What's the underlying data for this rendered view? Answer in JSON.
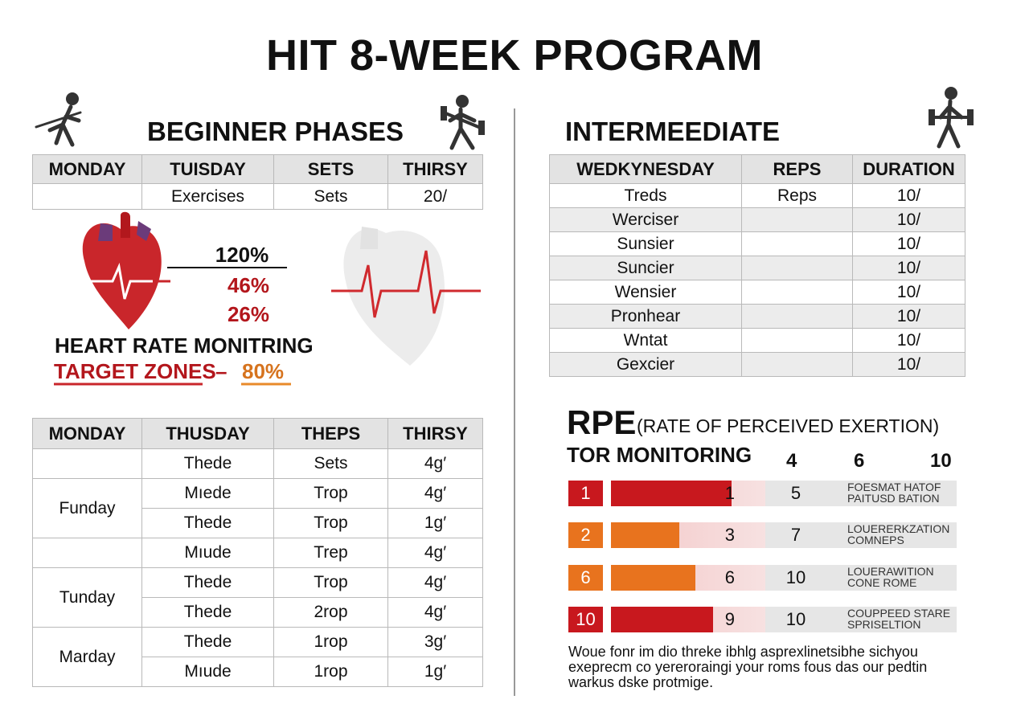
{
  "title": "HIT 8-WEEK PROGRAM",
  "beginner": {
    "heading": "BEGINNER PHASES",
    "table": {
      "header": [
        "MONDAY",
        "TUISDAY",
        "SETS",
        "THIRSY"
      ],
      "rows": [
        [
          null,
          "Exercises",
          "Sets",
          "20/"
        ]
      ]
    }
  },
  "heart_rate": {
    "values": [
      "120%",
      "46%",
      "26%"
    ],
    "title": "HEART RATE MONITRING",
    "target_label": "TARGET ZONES",
    "dash": "–",
    "target_value": "80%"
  },
  "schedule": {
    "header": [
      "MONDAY",
      "THUSDAY",
      "THEPS",
      "THIRSY"
    ],
    "groups": [
      {
        "day": null,
        "rows": [
          [
            "Thede",
            "Sets",
            "4g′"
          ]
        ]
      },
      {
        "day": "Funday",
        "rows": [
          [
            "Mıede",
            "Trop",
            "4g′"
          ],
          [
            "Thede",
            "Trop",
            "1g′"
          ]
        ]
      },
      {
        "day": null,
        "rows": [
          [
            "Mıude",
            "Trep",
            "4g′"
          ]
        ]
      },
      {
        "day": "Tunday",
        "rows": [
          [
            "Thede",
            "Trop",
            "4g′"
          ],
          [
            "Thede",
            "2rop",
            "4g′"
          ]
        ]
      },
      {
        "day": "Marday",
        "rows": [
          [
            "Thede",
            "1rop",
            "3g′"
          ],
          [
            "Mıude",
            "1rop",
            "1g′"
          ]
        ]
      }
    ]
  },
  "intermediate": {
    "heading": "INTERMEEDIATE",
    "table": {
      "header": [
        "WEDKYNESDAY",
        "REPS",
        "DURATION"
      ],
      "rows": [
        [
          "Treds",
          "Reps",
          "10/"
        ],
        [
          "Werciser",
          null,
          "10/"
        ],
        [
          "Sunsier",
          null,
          "10/"
        ],
        [
          "Suncier",
          null,
          "10/"
        ],
        [
          "Wensier",
          null,
          "10/"
        ],
        [
          "Pronhear",
          null,
          "10/"
        ],
        [
          "Wntat",
          null,
          "10/"
        ],
        [
          "Gexcier",
          null,
          "10/"
        ]
      ]
    }
  },
  "rpe": {
    "title": "RPE",
    "subtitle": "(RATE OF PERCEIVED EXERTION)",
    "label": "TOR MONITORING",
    "scale": [
      "4",
      "6",
      "10"
    ],
    "rows": [
      {
        "level": "1",
        "bar": "1",
        "score": "5",
        "description": [
          "FOESMAT HATOF",
          "PAITUSD BATION"
        ]
      },
      {
        "level": "2",
        "bar": "3",
        "score": "7",
        "description": [
          "LOUERERKZATION",
          "COMNEPS"
        ]
      },
      {
        "level": "6",
        "bar": "6",
        "score": "10",
        "description": [
          "LOUERAWITION",
          "CONE ROME"
        ]
      },
      {
        "level": "10",
        "bar": "9",
        "score": "10",
        "description": [
          "COUPPEED STARE",
          "SPRISELTION"
        ]
      }
    ]
  },
  "footnote": [
    "Woue fonr im dio threke ibhlg asprexlinetsibhe sichyou",
    "exeprecm co yereroraingi your roms fous das our pedtin",
    "warkus dske protmige."
  ]
}
